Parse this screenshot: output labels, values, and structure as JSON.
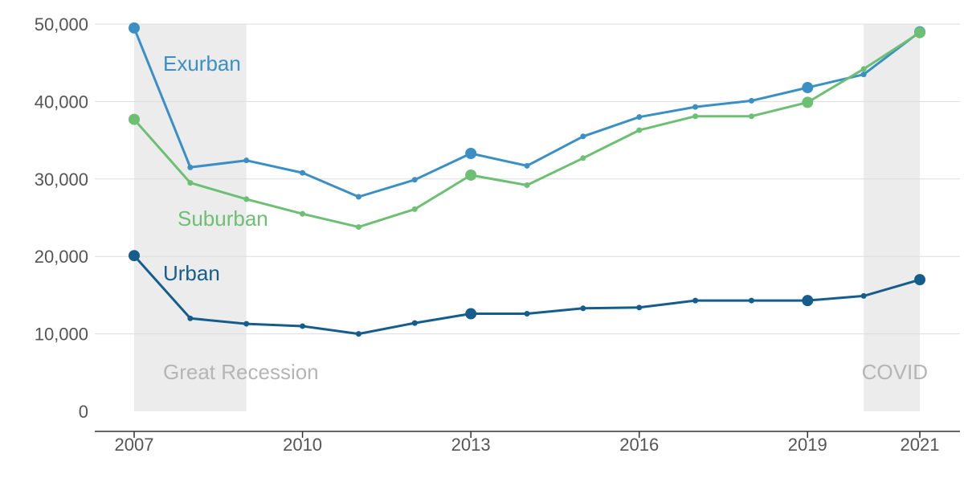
{
  "chart_data": {
    "type": "line",
    "title": "",
    "xlabel": "",
    "ylabel": "",
    "xlim": [
      2006.3,
      2021.7
    ],
    "ylim": [
      0,
      50000
    ],
    "grid": true,
    "x_ticks": [
      2007,
      2010,
      2013,
      2016,
      2019,
      2021
    ],
    "x_tick_labels": [
      "2007",
      "2010",
      "2013",
      "2016",
      "2019",
      "2021"
    ],
    "y_ticks": [
      0,
      10000,
      20000,
      30000,
      40000,
      50000
    ],
    "y_tick_labels": [
      "0",
      "10,000",
      "20,000",
      "30,000",
      "40,000",
      "50,000"
    ],
    "shaded_periods": [
      {
        "label": "Great Recession",
        "start": 2007,
        "end": 2009
      },
      {
        "label": "COVID",
        "start": 2020,
        "end": 2021
      }
    ],
    "x": [
      2007,
      2008,
      2009,
      2010,
      2011,
      2012,
      2013,
      2014,
      2015,
      2016,
      2017,
      2018,
      2019,
      2020,
      2021
    ],
    "highlight_years": [
      2007,
      2013,
      2019,
      2021
    ],
    "series": [
      {
        "name": "Exurban",
        "color": "#3a8fc4",
        "values": [
          49500,
          31500,
          32400,
          30800,
          27700,
          29900,
          33300,
          31700,
          35500,
          38000,
          39300,
          40100,
          41800,
          43500,
          49000
        ]
      },
      {
        "name": "Suburban",
        "color": "#6dbf73",
        "values": [
          37700,
          29500,
          27400,
          25500,
          23800,
          26100,
          30500,
          29200,
          32700,
          36300,
          38100,
          38100,
          39900,
          44200,
          48900
        ]
      },
      {
        "name": "Urban",
        "color": "#155e8b",
        "values": [
          20100,
          12000,
          11300,
          11000,
          10000,
          11400,
          12600,
          12600,
          13300,
          13400,
          14300,
          14300,
          14300,
          14900,
          17000
        ]
      }
    ]
  }
}
